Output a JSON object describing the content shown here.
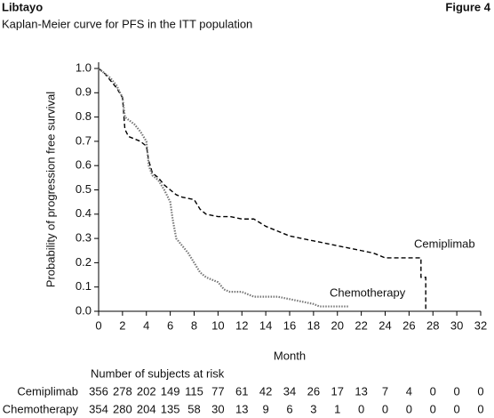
{
  "chart_data": {
    "type": "line",
    "title": "Libtayo",
    "figure_label": "Figure 4",
    "subtitle": "Kaplan-Meier curve for PFS in the ITT population",
    "x_label": "Month",
    "y_label": "Probability of progression free survival",
    "xlim": [
      0,
      32
    ],
    "ylim": [
      0,
      1
    ],
    "xticks": [
      0,
      2,
      4,
      6,
      8,
      10,
      12,
      14,
      16,
      18,
      20,
      22,
      24,
      26,
      28,
      30,
      32
    ],
    "yticks": [
      {
        "value": 0,
        "label": "0.0"
      },
      {
        "value": 0.1,
        "label": "0.1"
      },
      {
        "value": 0.2,
        "label": "0.2"
      },
      {
        "value": 0.3,
        "label": "0.3"
      },
      {
        "value": 0.4,
        "label": "0.4"
      },
      {
        "value": 0.5,
        "label": "0.5"
      },
      {
        "value": 0.6,
        "label": "0.6"
      },
      {
        "value": 0.7,
        "label": "0.7"
      },
      {
        "value": 0.8,
        "label": "0.8"
      },
      {
        "value": 0.9,
        "label": "0.9"
      },
      {
        "value": 1,
        "label": "1.0"
      }
    ],
    "risk_table_title": "Number of subjects at risk",
    "series": [
      {
        "name": "Cemiplimab",
        "color": "#000000",
        "dash": "5,3",
        "x": [
          0,
          0.5,
          1,
          1.5,
          2,
          2.2,
          2.5,
          3,
          3.5,
          4,
          4.2,
          4.5,
          5,
          5.5,
          6,
          6.5,
          7,
          8,
          8.5,
          9,
          10,
          11,
          12,
          13,
          14,
          15,
          16,
          17,
          18,
          19,
          20,
          21,
          22,
          23,
          24,
          27,
          27,
          27.4,
          27.4
        ],
        "values": [
          1,
          0.98,
          0.95,
          0.92,
          0.88,
          0.75,
          0.72,
          0.71,
          0.7,
          0.68,
          0.62,
          0.57,
          0.55,
          0.52,
          0.5,
          0.48,
          0.47,
          0.46,
          0.42,
          0.4,
          0.39,
          0.39,
          0.38,
          0.38,
          0.35,
          0.33,
          0.31,
          0.3,
          0.29,
          0.28,
          0.27,
          0.26,
          0.25,
          0.24,
          0.22,
          0.22,
          0.14,
          0.14,
          0
        ],
        "at_risk": [
          356,
          278,
          202,
          149,
          115,
          77,
          61,
          42,
          34,
          26,
          17,
          13,
          7,
          4,
          0,
          0,
          0
        ]
      },
      {
        "name": "Chemotherapy",
        "color": "#777777",
        "dash": "1.5,1.5",
        "x": [
          0,
          0.5,
          1,
          1.5,
          2,
          2.2,
          3,
          3.5,
          4,
          4.2,
          4.5,
          5,
          5.5,
          6,
          6.2,
          6.5,
          7,
          7.5,
          8,
          8.5,
          9,
          10,
          10.5,
          11,
          12,
          13,
          15,
          16,
          17,
          18,
          18.5,
          21
        ],
        "values": [
          1,
          0.98,
          0.96,
          0.93,
          0.88,
          0.8,
          0.77,
          0.74,
          0.7,
          0.6,
          0.56,
          0.54,
          0.5,
          0.45,
          0.38,
          0.3,
          0.27,
          0.24,
          0.2,
          0.16,
          0.14,
          0.12,
          0.09,
          0.08,
          0.08,
          0.06,
          0.06,
          0.05,
          0.04,
          0.03,
          0.02,
          0.02
        ],
        "at_risk": [
          354,
          280,
          204,
          135,
          58,
          30,
          13,
          9,
          6,
          3,
          1,
          0,
          0,
          0,
          0,
          0,
          0
        ]
      }
    ]
  }
}
